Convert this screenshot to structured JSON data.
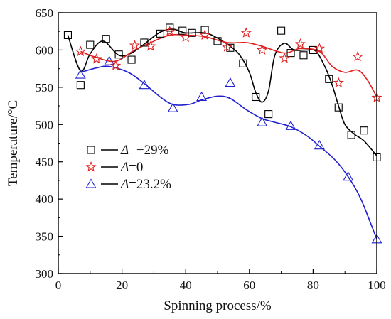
{
  "chart_data": {
    "type": "scatter",
    "title": "",
    "xlabel": "Spinning process/%",
    "ylabel": "Temperature/°C",
    "xlim": [
      0,
      100
    ],
    "ylim": [
      300,
      650
    ],
    "xticks": [
      0,
      20,
      40,
      60,
      80,
      100
    ],
    "yticks": [
      300,
      350,
      400,
      450,
      500,
      550,
      600,
      650
    ],
    "grid": false,
    "legend_position": "left-middle",
    "series": [
      {
        "name": "Δ=−29%",
        "label_prefix": "Δ",
        "label_suffix": "=−29%",
        "color": "#000000",
        "marker": "square",
        "points": [
          [
            3,
            620
          ],
          [
            7,
            553
          ],
          [
            10,
            607
          ],
          [
            15,
            615
          ],
          [
            19,
            594
          ],
          [
            23,
            587
          ],
          [
            27,
            610
          ],
          [
            32,
            622
          ],
          [
            35,
            630
          ],
          [
            39,
            626
          ],
          [
            42,
            623
          ],
          [
            46,
            627
          ],
          [
            50,
            612
          ],
          [
            54,
            603
          ],
          [
            58,
            582
          ],
          [
            62,
            537
          ],
          [
            66,
            514
          ],
          [
            70,
            626
          ],
          [
            73,
            596
          ],
          [
            77,
            593
          ],
          [
            80,
            600
          ],
          [
            85,
            561
          ],
          [
            88,
            523
          ],
          [
            92,
            486
          ],
          [
            96,
            492
          ],
          [
            100,
            456
          ]
        ],
        "curve": [
          [
            3,
            620
          ],
          [
            7,
            572
          ],
          [
            10,
            595
          ],
          [
            14,
            612
          ],
          [
            19,
            593
          ],
          [
            23,
            596
          ],
          [
            27,
            608
          ],
          [
            32,
            624
          ],
          [
            36,
            628
          ],
          [
            40,
            623
          ],
          [
            46,
            623
          ],
          [
            50,
            616
          ],
          [
            54,
            605
          ],
          [
            57,
            593
          ],
          [
            60,
            570
          ],
          [
            62,
            543
          ],
          [
            64,
            530
          ],
          [
            66,
            545
          ],
          [
            68,
            593
          ],
          [
            71,
            609
          ],
          [
            74,
            600
          ],
          [
            78,
            600
          ],
          [
            81,
            598
          ],
          [
            84,
            575
          ],
          [
            86,
            553
          ],
          [
            88,
            525
          ],
          [
            90,
            500
          ],
          [
            93,
            487
          ],
          [
            96,
            478
          ],
          [
            100,
            458
          ]
        ]
      },
      {
        "name": "Δ=0",
        "label_prefix": "Δ",
        "label_suffix": "=0",
        "color": "#e02020",
        "marker": "star",
        "points": [
          [
            7,
            598
          ],
          [
            12,
            588
          ],
          [
            18,
            579
          ],
          [
            24,
            606
          ],
          [
            29,
            605
          ],
          [
            35,
            625
          ],
          [
            40,
            617
          ],
          [
            46,
            620
          ],
          [
            53,
            604
          ],
          [
            59,
            623
          ],
          [
            64,
            600
          ],
          [
            71,
            589
          ],
          [
            76,
            608
          ],
          [
            82,
            602
          ],
          [
            88,
            556
          ],
          [
            94,
            591
          ],
          [
            100,
            536
          ]
        ],
        "curve": [
          [
            7,
            598
          ],
          [
            12,
            590
          ],
          [
            18,
            585
          ],
          [
            24,
            600
          ],
          [
            29,
            610
          ],
          [
            35,
            620
          ],
          [
            40,
            620
          ],
          [
            46,
            618
          ],
          [
            53,
            610
          ],
          [
            59,
            610
          ],
          [
            64,
            605
          ],
          [
            71,
            596
          ],
          [
            76,
            602
          ],
          [
            82,
            598
          ],
          [
            86,
            578
          ],
          [
            90,
            570
          ],
          [
            94,
            573
          ],
          [
            97,
            560
          ],
          [
            100,
            537
          ]
        ]
      },
      {
        "name": "Δ=23.2%",
        "label_prefix": "Δ",
        "label_suffix": "=23.2%",
        "color": "#1f1fd0",
        "marker": "triangle",
        "points": [
          [
            7,
            567
          ],
          [
            16,
            585
          ],
          [
            27,
            553
          ],
          [
            36,
            522
          ],
          [
            45,
            537
          ],
          [
            54,
            556
          ],
          [
            64,
            503
          ],
          [
            73,
            498
          ],
          [
            82,
            472
          ],
          [
            91,
            430
          ],
          [
            100,
            346
          ]
        ],
        "curve": [
          [
            7,
            570
          ],
          [
            12,
            576
          ],
          [
            16,
            578
          ],
          [
            22,
            570
          ],
          [
            27,
            555
          ],
          [
            32,
            537
          ],
          [
            36,
            527
          ],
          [
            41,
            527
          ],
          [
            45,
            533
          ],
          [
            50,
            538
          ],
          [
            54,
            535
          ],
          [
            59,
            520
          ],
          [
            64,
            508
          ],
          [
            68,
            503
          ],
          [
            73,
            497
          ],
          [
            78,
            485
          ],
          [
            82,
            471
          ],
          [
            87,
            452
          ],
          [
            91,
            430
          ],
          [
            95,
            400
          ],
          [
            100,
            346
          ]
        ]
      }
    ]
  }
}
